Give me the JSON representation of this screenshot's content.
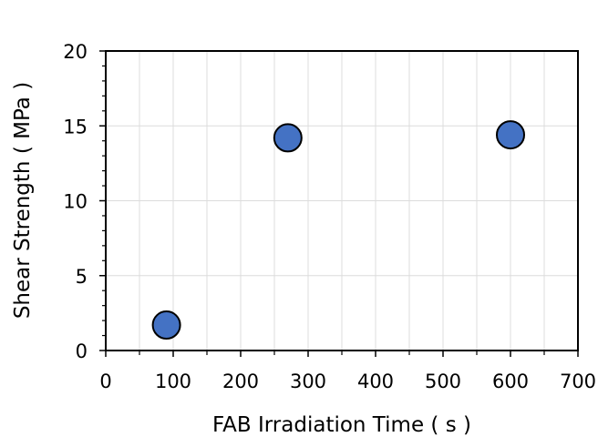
{
  "chart_data": {
    "type": "scatter",
    "xlabel": "FAB Irradiation Time ( s )",
    "ylabel": "Shear Strength ( MPa )",
    "xlim": [
      0,
      700
    ],
    "ylim": [
      0,
      20
    ],
    "xticks": [
      0,
      100,
      200,
      300,
      400,
      500,
      600,
      700
    ],
    "yticks": [
      0,
      5,
      10,
      15,
      20
    ],
    "x_tick_labels": [
      "0",
      "100",
      "200",
      "300",
      "400",
      "500",
      "600",
      "700"
    ],
    "y_tick_labels": [
      "0",
      "5",
      "10",
      "15",
      "20"
    ],
    "grid": true,
    "series": [
      {
        "points": [
          {
            "x": 90,
            "y": 1.7
          },
          {
            "x": 270,
            "y": 14.2
          },
          {
            "x": 600,
            "y": 14.4
          }
        ],
        "color": "#4472C4"
      }
    ]
  }
}
